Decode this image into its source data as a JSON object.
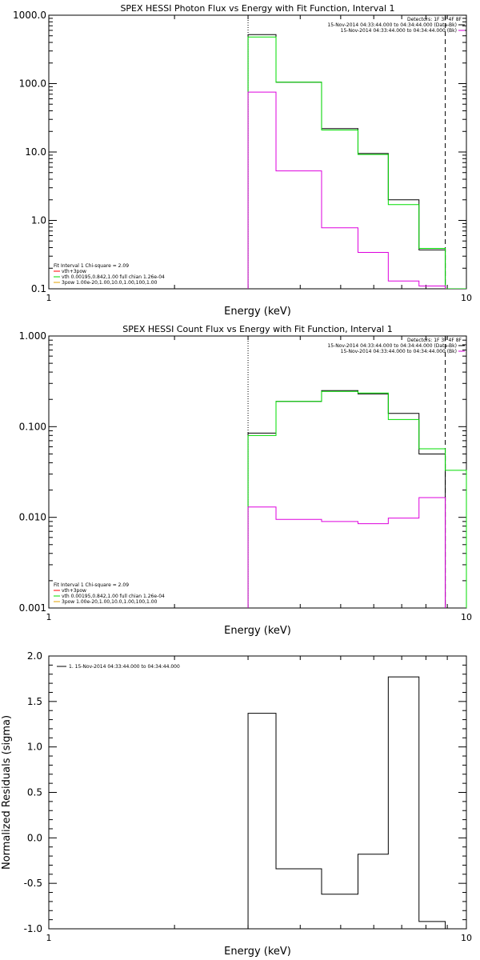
{
  "chart_data": [
    {
      "type": "line",
      "title": "SPEX HESSI Photon Flux vs Energy with Fit Function, Interval 1",
      "xlabel": "Energy (keV)",
      "ylabel": "",
      "xscale": "log",
      "yscale": "log",
      "xlim": [
        1,
        10
      ],
      "ylim": [
        0.1,
        1000
      ],
      "x_ticks": [
        "1",
        "10"
      ],
      "y_ticks": [
        "1000.0",
        "100.0",
        "10.0",
        "1.0",
        "0.1"
      ],
      "vlines": [
        {
          "x": 3.0,
          "style": "dotted"
        },
        {
          "x": 8.9,
          "style": "dashed"
        }
      ],
      "bin_edges": [
        3.0,
        3.5,
        4.5,
        5.5,
        6.5,
        7.7,
        8.9,
        10.0
      ],
      "series": [
        {
          "name": "",
          "color": "#000000",
          "values": [
            520,
            105,
            22,
            9.5,
            2.0,
            0.37
          ]
        },
        {
          "name": "",
          "color": "#00dd00",
          "values": [
            480,
            105,
            21,
            9.2,
            1.7,
            0.39,
            0.1
          ]
        },
        {
          "name": "",
          "color": "#dd00dd",
          "values": [
            75,
            5.3,
            0.78,
            0.34,
            0.13,
            0.11
          ]
        }
      ],
      "legend_header": [
        "Detectors: 1F 3F 4F 8F"
      ],
      "legend_lines": [
        {
          "text": "15-Nov-2014 04:33:44.000 to 04:34:44.000 (Data-Bk)",
          "color": "#000000"
        },
        {
          "text": "15-Nov-2014 04:33:44.000 to 04:34:44.000 (Bk)",
          "color": "#dd00dd"
        }
      ],
      "fit_info": [
        {
          "text": "Fit Interval 1    Chi-square = 2.09",
          "color": ""
        },
        {
          "text": "vth+3pow",
          "color": "#ff0000"
        },
        {
          "text": "vth 0.00195,0.842,1.00   full chian 1.26e-04",
          "color": "#00dd00"
        },
        {
          "text": "3pow 1.00e-20,1.00,10.0,1.00,100,1.00",
          "color": "#e0a000"
        }
      ]
    },
    {
      "type": "line",
      "title": "SPEX HESSI Count Flux vs Energy with Fit Function, Interval 1",
      "xlabel": "Energy (keV)",
      "ylabel": "",
      "xscale": "log",
      "yscale": "log",
      "xlim": [
        1,
        10
      ],
      "ylim": [
        0.001,
        1.0
      ],
      "x_ticks": [
        "1",
        "10"
      ],
      "y_ticks": [
        "1.000",
        "0.100",
        "0.010",
        "0.001"
      ],
      "vlines": [
        {
          "x": 3.0,
          "style": "dotted"
        },
        {
          "x": 8.9,
          "style": "dashed"
        }
      ],
      "bin_edges": [
        3.0,
        3.5,
        4.5,
        5.5,
        6.5,
        7.7,
        8.9,
        10.0
      ],
      "series": [
        {
          "name": "",
          "color": "#000000",
          "values": [
            0.085,
            0.19,
            0.25,
            0.23,
            0.14,
            0.05
          ]
        },
        {
          "name": "",
          "color": "#00dd00",
          "values": [
            0.08,
            0.19,
            0.245,
            0.235,
            0.12,
            0.057,
            0.033
          ]
        },
        {
          "name": "",
          "color": "#dd00dd",
          "values": [
            0.013,
            0.0095,
            0.009,
            0.0085,
            0.0098,
            0.0165
          ]
        }
      ],
      "legend_header": [
        "Detectors: 1F 3F 4F 8F"
      ],
      "legend_lines": [
        {
          "text": "15-Nov-2014 04:33:44.000 to 04:34:44.000 (Data-Bk)",
          "color": "#000000"
        },
        {
          "text": "15-Nov-2014 04:33:44.000 to 04:34:44.000 (Bk)",
          "color": "#dd00dd"
        }
      ],
      "fit_info": [
        {
          "text": "Fit Interval 1    Chi-square = 2.09",
          "color": ""
        },
        {
          "text": "vth+3pow",
          "color": "#ff0000"
        },
        {
          "text": "vth 0.00195,0.842,1.00   full chian 1.26e-04",
          "color": "#00dd00"
        },
        {
          "text": "3pow 1.00e-20,1.00,10.0,1.00,100,1.00",
          "color": "#e0a000"
        }
      ]
    },
    {
      "type": "line",
      "title": "",
      "xlabel": "Energy (keV)",
      "ylabel": "Normalized Residuals (sigma)",
      "xscale": "log",
      "yscale": "linear",
      "xlim": [
        1,
        10
      ],
      "ylim": [
        -1.0,
        2.0
      ],
      "x_ticks": [
        "1",
        "10"
      ],
      "y_ticks": [
        "2.0",
        "1.5",
        "1.0",
        "0.5",
        "0.0",
        "-0.5",
        "-1.0"
      ],
      "vlines": [],
      "bin_edges": [
        3.0,
        3.5,
        4.5,
        5.5,
        6.5,
        7.7,
        8.9
      ],
      "series": [
        {
          "name": "",
          "color": "#000000",
          "values": [
            1.37,
            -0.34,
            -0.62,
            -0.18,
            1.77,
            -0.92
          ]
        }
      ],
      "legend_header": [],
      "legend_lines": [
        {
          "text": "1. 15-Nov-2014 04:33:44.000 to 04:34:44.000",
          "color": "#000000"
        }
      ],
      "fit_info": []
    }
  ]
}
